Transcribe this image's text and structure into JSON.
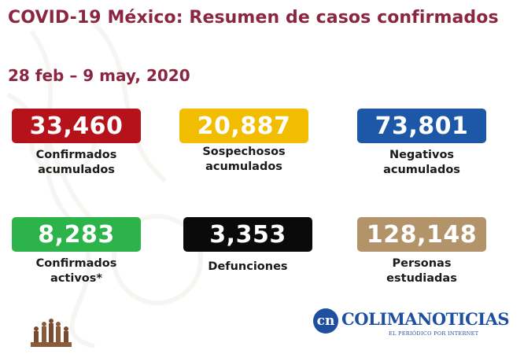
{
  "title": "COVID-19 México: Resumen de casos confirmados",
  "date_range": "28 feb – 9 may, 2020",
  "colors": {
    "title": "#8a2641",
    "red": "#b5121b",
    "yellow": "#f2bd00",
    "blue": "#1d58a8",
    "green": "#2cb34a",
    "black": "#0a0a0a",
    "tan": "#b3936a"
  },
  "stats": [
    {
      "value": "33,460",
      "label": "Confirmados\nacumulados",
      "color": "#b5121b"
    },
    {
      "value": "20,887",
      "label": "Sospechosos\nacumulados",
      "color": "#f2bd00"
    },
    {
      "value": "73,801",
      "label": "Negativos\nacumulados",
      "color": "#1d58a8"
    },
    {
      "value": "8,283",
      "label": "Confirmados\nactivos*",
      "color": "#2cb34a"
    },
    {
      "value": "3,353",
      "label": "Defunciones",
      "color": "#0a0a0a"
    },
    {
      "value": "128,148",
      "label": "Personas\nestudiadas",
      "color": "#b3936a"
    }
  ],
  "watermark": {
    "monogram": "cn",
    "name": "COLIMANOTICIAS",
    "tagline": "EL PERIÓDICO POR INTERNET"
  },
  "icons": {
    "left_logo": "government-heritage-logo-icon",
    "watermark": "colimanoticias-logo-icon"
  }
}
